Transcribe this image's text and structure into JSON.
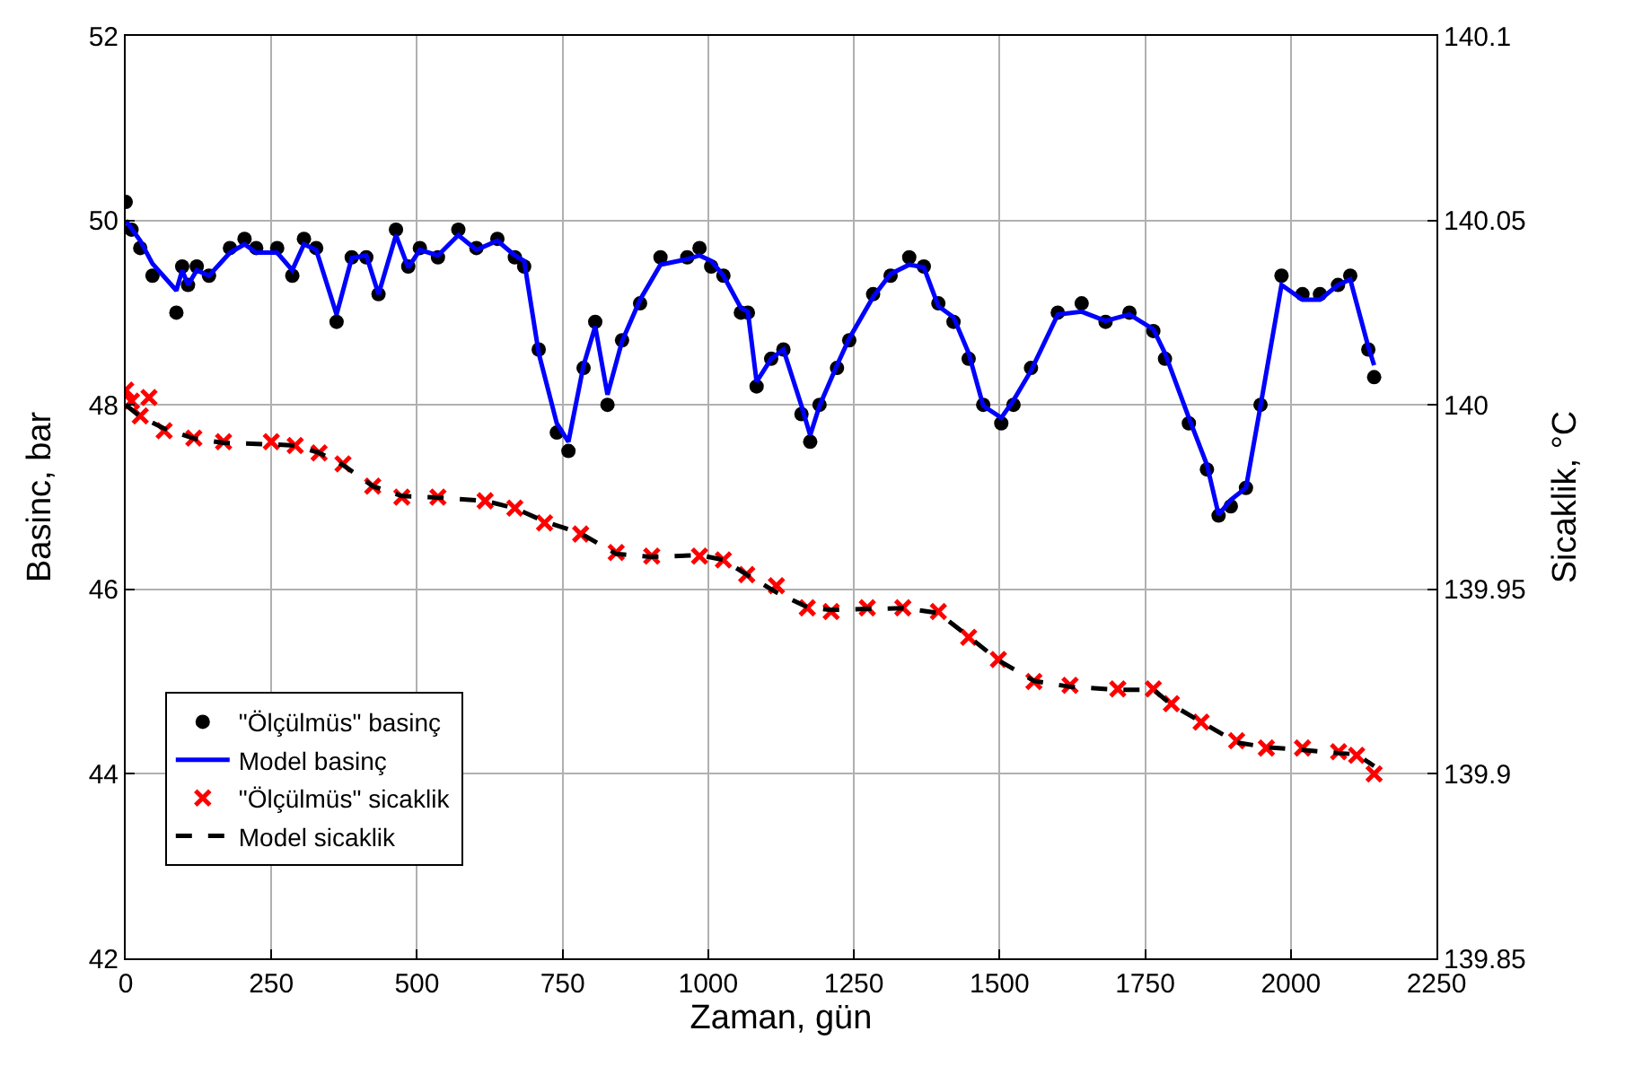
{
  "chart_data": {
    "type": "line",
    "xlabel": "Zaman, gün",
    "ylabel": "Basinc, bar",
    "y2label": "Sicaklik, °C",
    "xlim": [
      0,
      2250
    ],
    "xticks": [
      0,
      250,
      500,
      750,
      1000,
      1250,
      1500,
      1750,
      2000,
      2250
    ],
    "ylim": [
      42,
      52
    ],
    "yticks": [
      42,
      44,
      46,
      48,
      50,
      52
    ],
    "y2lim": [
      139.85,
      140.1
    ],
    "y2ticks": [
      139.85,
      139.9,
      139.95,
      140,
      140.05,
      140.1
    ],
    "grid": true,
    "legend": "bottom left",
    "series": [
      {
        "name": "\"Ölçülmüs\" basinç",
        "type": "scatter",
        "marker": "circle",
        "color": "#000000",
        "x": [
          0,
          10,
          25,
          46,
          87,
          97,
          107,
          122,
          143,
          179,
          204,
          224,
          260,
          286,
          306,
          327,
          362,
          388,
          413,
          434,
          464,
          485,
          505,
          536,
          571,
          602,
          638,
          668,
          684,
          709,
          740,
          760,
          786,
          806,
          827,
          852,
          883,
          918,
          964,
          985,
          1005,
          1026,
          1056,
          1068,
          1083,
          1108,
          1129,
          1160,
          1175,
          1191,
          1221,
          1242,
          1283,
          1313,
          1345,
          1370,
          1395,
          1421,
          1447,
          1472,
          1503,
          1524,
          1554,
          1600,
          1641,
          1682,
          1723,
          1764,
          1784,
          1825,
          1856,
          1876,
          1897,
          1923,
          1948,
          1984,
          2020,
          2050,
          2081,
          2102,
          2133,
          2143
        ],
        "values": [
          50.2,
          49.9,
          49.7,
          49.4,
          49.0,
          49.5,
          49.3,
          49.5,
          49.4,
          49.7,
          49.8,
          49.7,
          49.7,
          49.4,
          49.8,
          49.7,
          48.9,
          49.6,
          49.6,
          49.2,
          49.9,
          49.5,
          49.7,
          49.6,
          49.9,
          49.7,
          49.8,
          49.6,
          49.5,
          48.6,
          47.7,
          47.5,
          48.4,
          48.9,
          48.0,
          48.7,
          49.1,
          49.6,
          49.6,
          49.7,
          49.5,
          49.4,
          49.0,
          49.0,
          48.2,
          48.5,
          48.6,
          47.9,
          47.6,
          48.0,
          48.4,
          48.7,
          49.2,
          49.4,
          49.6,
          49.5,
          49.1,
          48.9,
          48.5,
          48.0,
          47.8,
          48.0,
          48.4,
          49.0,
          49.1,
          48.9,
          49.0,
          48.8,
          48.5,
          47.8,
          47.3,
          46.8,
          46.9,
          47.1,
          48.0,
          49.4,
          49.2,
          49.2,
          49.3,
          49.4,
          48.6,
          48.3
        ]
      },
      {
        "name": "Model basinç",
        "line_style": "solid",
        "color": "#0000ff",
        "x": [
          0,
          25,
          46,
          87,
          97,
          107,
          122,
          143,
          179,
          204,
          224,
          260,
          286,
          306,
          327,
          362,
          388,
          413,
          434,
          464,
          485,
          505,
          536,
          571,
          602,
          638,
          668,
          684,
          709,
          740,
          760,
          786,
          806,
          827,
          852,
          883,
          918,
          964,
          985,
          1005,
          1026,
          1056,
          1068,
          1083,
          1108,
          1129,
          1160,
          1175,
          1191,
          1221,
          1242,
          1283,
          1313,
          1345,
          1370,
          1395,
          1421,
          1447,
          1472,
          1503,
          1524,
          1554,
          1600,
          1641,
          1682,
          1723,
          1764,
          1784,
          1825,
          1856,
          1876,
          1897,
          1923,
          1948,
          1984,
          2020,
          2050,
          2081,
          2102,
          2133,
          2143
        ],
        "values": [
          50.0,
          49.78,
          49.53,
          49.24,
          49.46,
          49.3,
          49.46,
          49.4,
          49.65,
          49.74,
          49.65,
          49.65,
          49.46,
          49.74,
          49.68,
          48.98,
          49.59,
          49.62,
          49.2,
          49.84,
          49.49,
          49.68,
          49.62,
          49.84,
          49.68,
          49.78,
          49.62,
          49.56,
          48.56,
          47.8,
          47.6,
          48.43,
          48.85,
          48.11,
          48.69,
          49.14,
          49.52,
          49.58,
          49.62,
          49.56,
          49.4,
          49.05,
          49.01,
          48.25,
          48.5,
          48.6,
          47.99,
          47.67,
          47.99,
          48.43,
          48.72,
          49.17,
          49.42,
          49.52,
          49.49,
          49.07,
          48.95,
          48.56,
          47.99,
          47.86,
          48.05,
          48.37,
          48.98,
          49.01,
          48.91,
          48.98,
          48.82,
          48.56,
          47.86,
          47.35,
          46.81,
          46.97,
          47.1,
          47.99,
          49.3,
          49.14,
          49.14,
          49.3,
          49.36,
          48.63,
          48.43
        ]
      },
      {
        "name": "\"Ölçülmüs\" sicaklik",
        "type": "scatter",
        "marker": "cross",
        "axis": "y2",
        "color": "#ff0000",
        "x": [
          0,
          10,
          25,
          40,
          66,
          117,
          168,
          250,
          291,
          332,
          373,
          424,
          474,
          536,
          617,
          668,
          719,
          781,
          842,
          903,
          985,
          1026,
          1066,
          1117,
          1170,
          1211,
          1273,
          1334,
          1395,
          1447,
          1498,
          1559,
          1621,
          1703,
          1764,
          1795,
          1846,
          1907,
          1958,
          2020,
          2082,
          2113,
          2143
        ],
        "values": [
          140.004,
          140.001,
          139.997,
          140.002,
          139.993,
          139.991,
          139.99,
          139.99,
          139.989,
          139.987,
          139.984,
          139.978,
          139.975,
          139.975,
          139.974,
          139.972,
          139.968,
          139.965,
          139.96,
          139.959,
          139.959,
          139.958,
          139.954,
          139.951,
          139.945,
          139.944,
          139.945,
          139.945,
          139.944,
          139.937,
          139.931,
          139.925,
          139.924,
          139.923,
          139.923,
          139.919,
          139.914,
          139.909,
          139.907,
          139.907,
          139.906,
          139.905,
          139.9
        ]
      },
      {
        "name": "Model sicaklik",
        "line_style": "dashed",
        "axis": "y2",
        "color": "#000000",
        "x": [
          0,
          25,
          66,
          117,
          168,
          250,
          291,
          332,
          373,
          424,
          474,
          536,
          617,
          668,
          719,
          781,
          842,
          903,
          985,
          1026,
          1066,
          1117,
          1170,
          1211,
          1273,
          1334,
          1395,
          1447,
          1498,
          1559,
          1621,
          1703,
          1764,
          1795,
          1846,
          1907,
          1958,
          2020,
          2082,
          2113,
          2143
        ],
        "values": [
          140.0,
          139.9968,
          139.9936,
          139.9909,
          139.9897,
          139.9893,
          139.989,
          139.987,
          139.9837,
          139.978,
          139.9753,
          139.9749,
          139.974,
          139.972,
          139.9684,
          139.9652,
          139.9596,
          139.9588,
          139.9593,
          139.958,
          139.954,
          139.9492,
          139.9452,
          139.9444,
          139.9447,
          139.9449,
          139.9436,
          139.9372,
          139.9308,
          139.9252,
          139.9236,
          139.9228,
          139.9228,
          139.9188,
          139.9141,
          139.9085,
          139.9072,
          139.9065,
          139.9056,
          139.9053,
          139.9021
        ]
      }
    ]
  }
}
